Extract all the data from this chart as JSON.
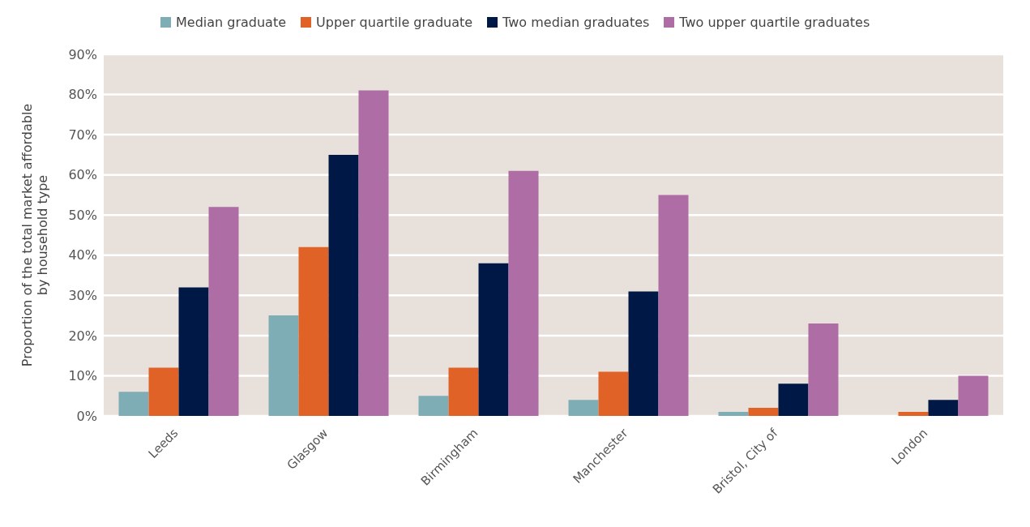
{
  "chart_data": {
    "type": "bar",
    "ylabel": "Proportion of the total market affordable by household type",
    "categories": [
      "Leeds",
      "Glasgow",
      "Birmingham",
      "Manchester",
      "Bristol, City of",
      "London"
    ],
    "series": [
      {
        "name": "Median graduate",
        "color": "#7fadb5",
        "values": [
          6,
          25,
          5,
          4,
          1,
          0
        ]
      },
      {
        "name": "Upper quartile graduate",
        "color": "#e06226",
        "values": [
          12,
          42,
          12,
          11,
          2,
          1
        ]
      },
      {
        "name": "Two median graduates",
        "color": "#001845",
        "values": [
          32,
          65,
          38,
          31,
          8,
          4
        ]
      },
      {
        "name": "Two upper quartile graduates",
        "color": "#ae6da4",
        "values": [
          52,
          81,
          61,
          55,
          23,
          10
        ]
      }
    ],
    "ylim": [
      0,
      90
    ],
    "yticks": [
      {
        "value": 0,
        "label": "0%"
      },
      {
        "value": 10,
        "label": "10%"
      },
      {
        "value": 20,
        "label": "20%"
      },
      {
        "value": 30,
        "label": "30%"
      },
      {
        "value": 40,
        "label": "40%"
      },
      {
        "value": 50,
        "label": "50%"
      },
      {
        "value": 60,
        "label": "60%"
      },
      {
        "value": 70,
        "label": "70%"
      },
      {
        "value": 80,
        "label": "80%"
      },
      {
        "value": 90,
        "label": "90%"
      }
    ],
    "grid": "y",
    "legend": "top left"
  }
}
